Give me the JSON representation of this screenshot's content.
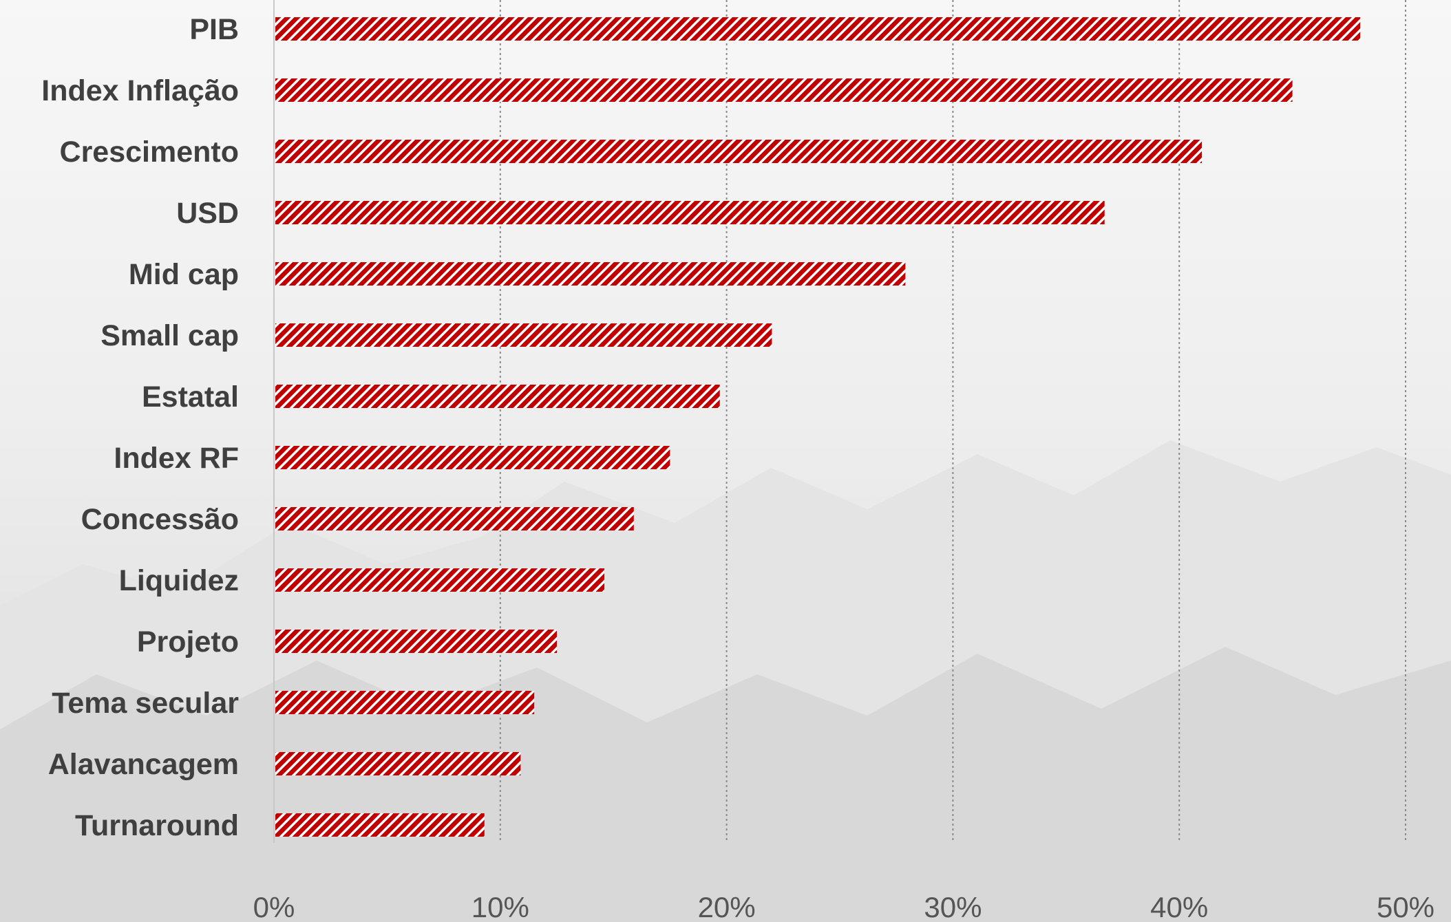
{
  "chart_data": {
    "type": "bar",
    "orientation": "horizontal",
    "title": "",
    "xlabel": "",
    "ylabel": "",
    "categories": [
      "PIB",
      "Index Inflação",
      "Crescimento",
      "USD",
      "Mid cap",
      "Small cap",
      "Estatal",
      "Index RF",
      "Concessão",
      "Liquidez",
      "Projeto",
      "Tema secular",
      "Alavancagem",
      "Turnaround"
    ],
    "values": [
      48.0,
      45.0,
      41.0,
      36.7,
      27.9,
      22.0,
      19.7,
      17.5,
      15.9,
      14.6,
      12.5,
      11.5,
      10.9,
      9.3
    ],
    "value_unit": "%",
    "xlim": [
      0,
      50
    ],
    "x_ticks": [
      "0%",
      "10%",
      "20%",
      "30%",
      "40%",
      "50%"
    ],
    "grid": "vertical dashed",
    "bar_color": "#c00000",
    "bar_pattern": "diagonal-stripes",
    "background": "#f1f1f1"
  }
}
